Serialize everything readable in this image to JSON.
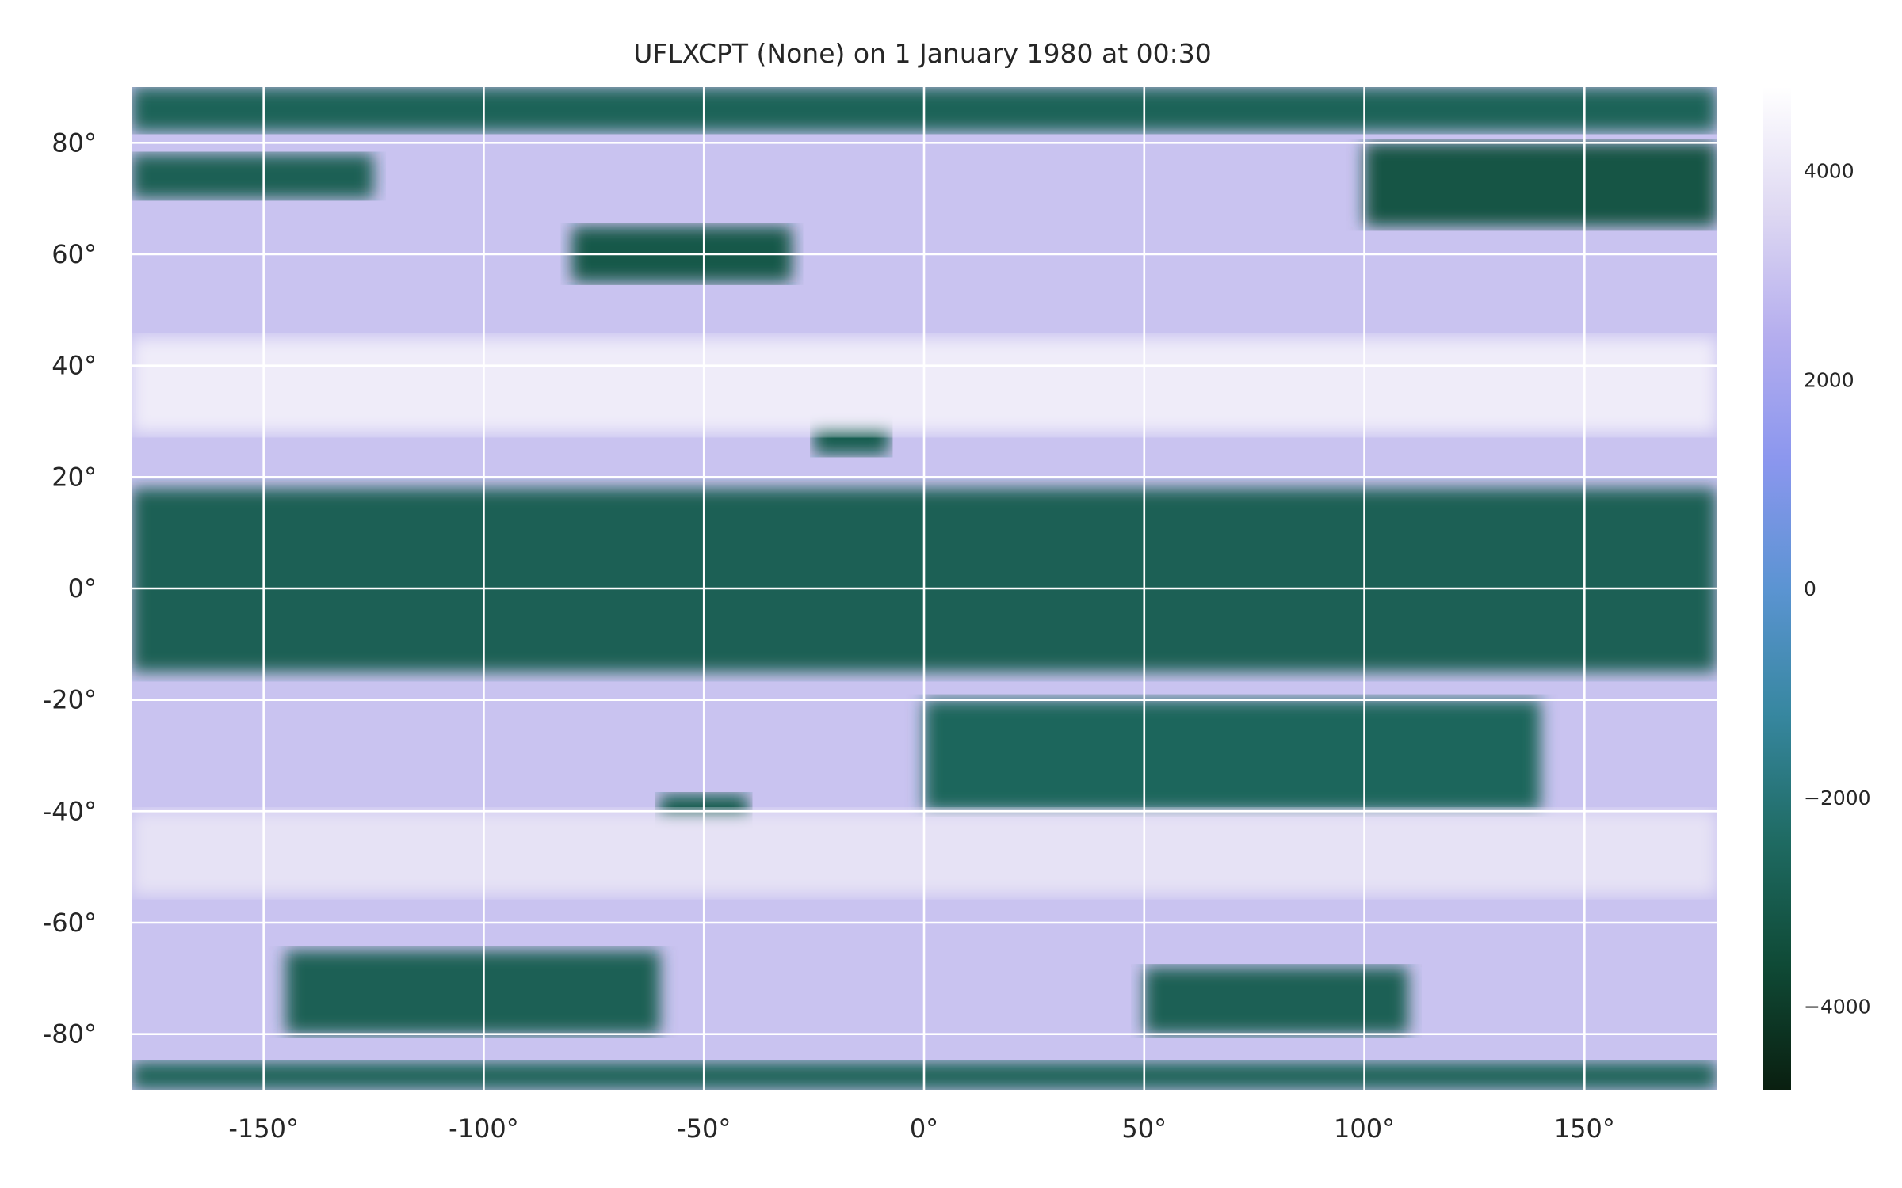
{
  "chart_data": {
    "type": "heatmap",
    "title": "UFLXCPT (None) on 1 January 1980 at 00:30",
    "xlabel": "",
    "ylabel": "",
    "xlim": [
      -180,
      180
    ],
    "ylim": [
      -90,
      90
    ],
    "x_ticks": [
      -150,
      -100,
      -50,
      0,
      50,
      100,
      150
    ],
    "x_tick_labels": [
      "-150°",
      "-100°",
      "-50°",
      "0°",
      "50°",
      "100°",
      "150°"
    ],
    "y_ticks": [
      80,
      60,
      40,
      20,
      0,
      -20,
      -40,
      -60,
      -80
    ],
    "y_tick_labels": [
      "80°",
      "60°",
      "40°",
      "20°",
      "0°",
      "-20°",
      "-40°",
      "-60°",
      "-80°"
    ],
    "grid": true,
    "colorbar": {
      "range": [
        -4800,
        4800
      ],
      "ticks": [
        4000,
        2000,
        0,
        -2000,
        -4000
      ],
      "tick_labels": [
        "4000",
        "2000",
        "0",
        "−2000",
        "−4000"
      ],
      "colormap": [
        {
          "value": -4800,
          "color": "#0a1f10"
        },
        {
          "value": -3600,
          "color": "#0f4a36"
        },
        {
          "value": -2400,
          "color": "#1f6b63"
        },
        {
          "value": -1200,
          "color": "#3787a0"
        },
        {
          "value": 0,
          "color": "#5b94d2"
        },
        {
          "value": 1200,
          "color": "#8a96ee"
        },
        {
          "value": 2400,
          "color": "#b4adee"
        },
        {
          "value": 3600,
          "color": "#ded8f2"
        },
        {
          "value": 4800,
          "color": "#ffffff"
        }
      ]
    },
    "field_regions": [
      {
        "lon_range": [
          -180,
          180
        ],
        "lat_range": [
          -90,
          90
        ],
        "value": 3000
      },
      {
        "lon_range": [
          -180,
          180
        ],
        "lat_range": [
          -15,
          18
        ],
        "value": -2800
      },
      {
        "lon_range": [
          -180,
          180
        ],
        "lat_range": [
          82,
          90
        ],
        "value": -2700
      },
      {
        "lon_range": [
          -180,
          180
        ],
        "lat_range": [
          -90,
          -85
        ],
        "value": -2700
      },
      {
        "lon_range": [
          -180,
          -125
        ],
        "lat_range": [
          70,
          78
        ],
        "value": -2800
      },
      {
        "lon_range": [
          -80,
          -30
        ],
        "lat_range": [
          55,
          65
        ],
        "value": -3100
      },
      {
        "lon_range": [
          100,
          180
        ],
        "lat_range": [
          65,
          80
        ],
        "value": -3200
      },
      {
        "lon_range": [
          -25,
          -8
        ],
        "lat_range": [
          24,
          33
        ],
        "value": -2900
      },
      {
        "lon_range": [
          -60,
          -40
        ],
        "lat_range": [
          -45,
          -37
        ],
        "value": -2900
      },
      {
        "lon_range": [
          -145,
          -60
        ],
        "lat_range": [
          -80,
          -65
        ],
        "value": -2800
      },
      {
        "lon_range": [
          50,
          110
        ],
        "lat_range": [
          -80,
          -68
        ],
        "value": -2800
      },
      {
        "lon_range": [
          0,
          140
        ],
        "lat_range": [
          -40,
          -20
        ],
        "value": -2600
      },
      {
        "lon_range": [
          -180,
          180
        ],
        "lat_range": [
          28,
          45
        ],
        "value": 4200
      },
      {
        "lon_range": [
          -180,
          180
        ],
        "lat_range": [
          -55,
          -40
        ],
        "value": 3900
      }
    ]
  }
}
